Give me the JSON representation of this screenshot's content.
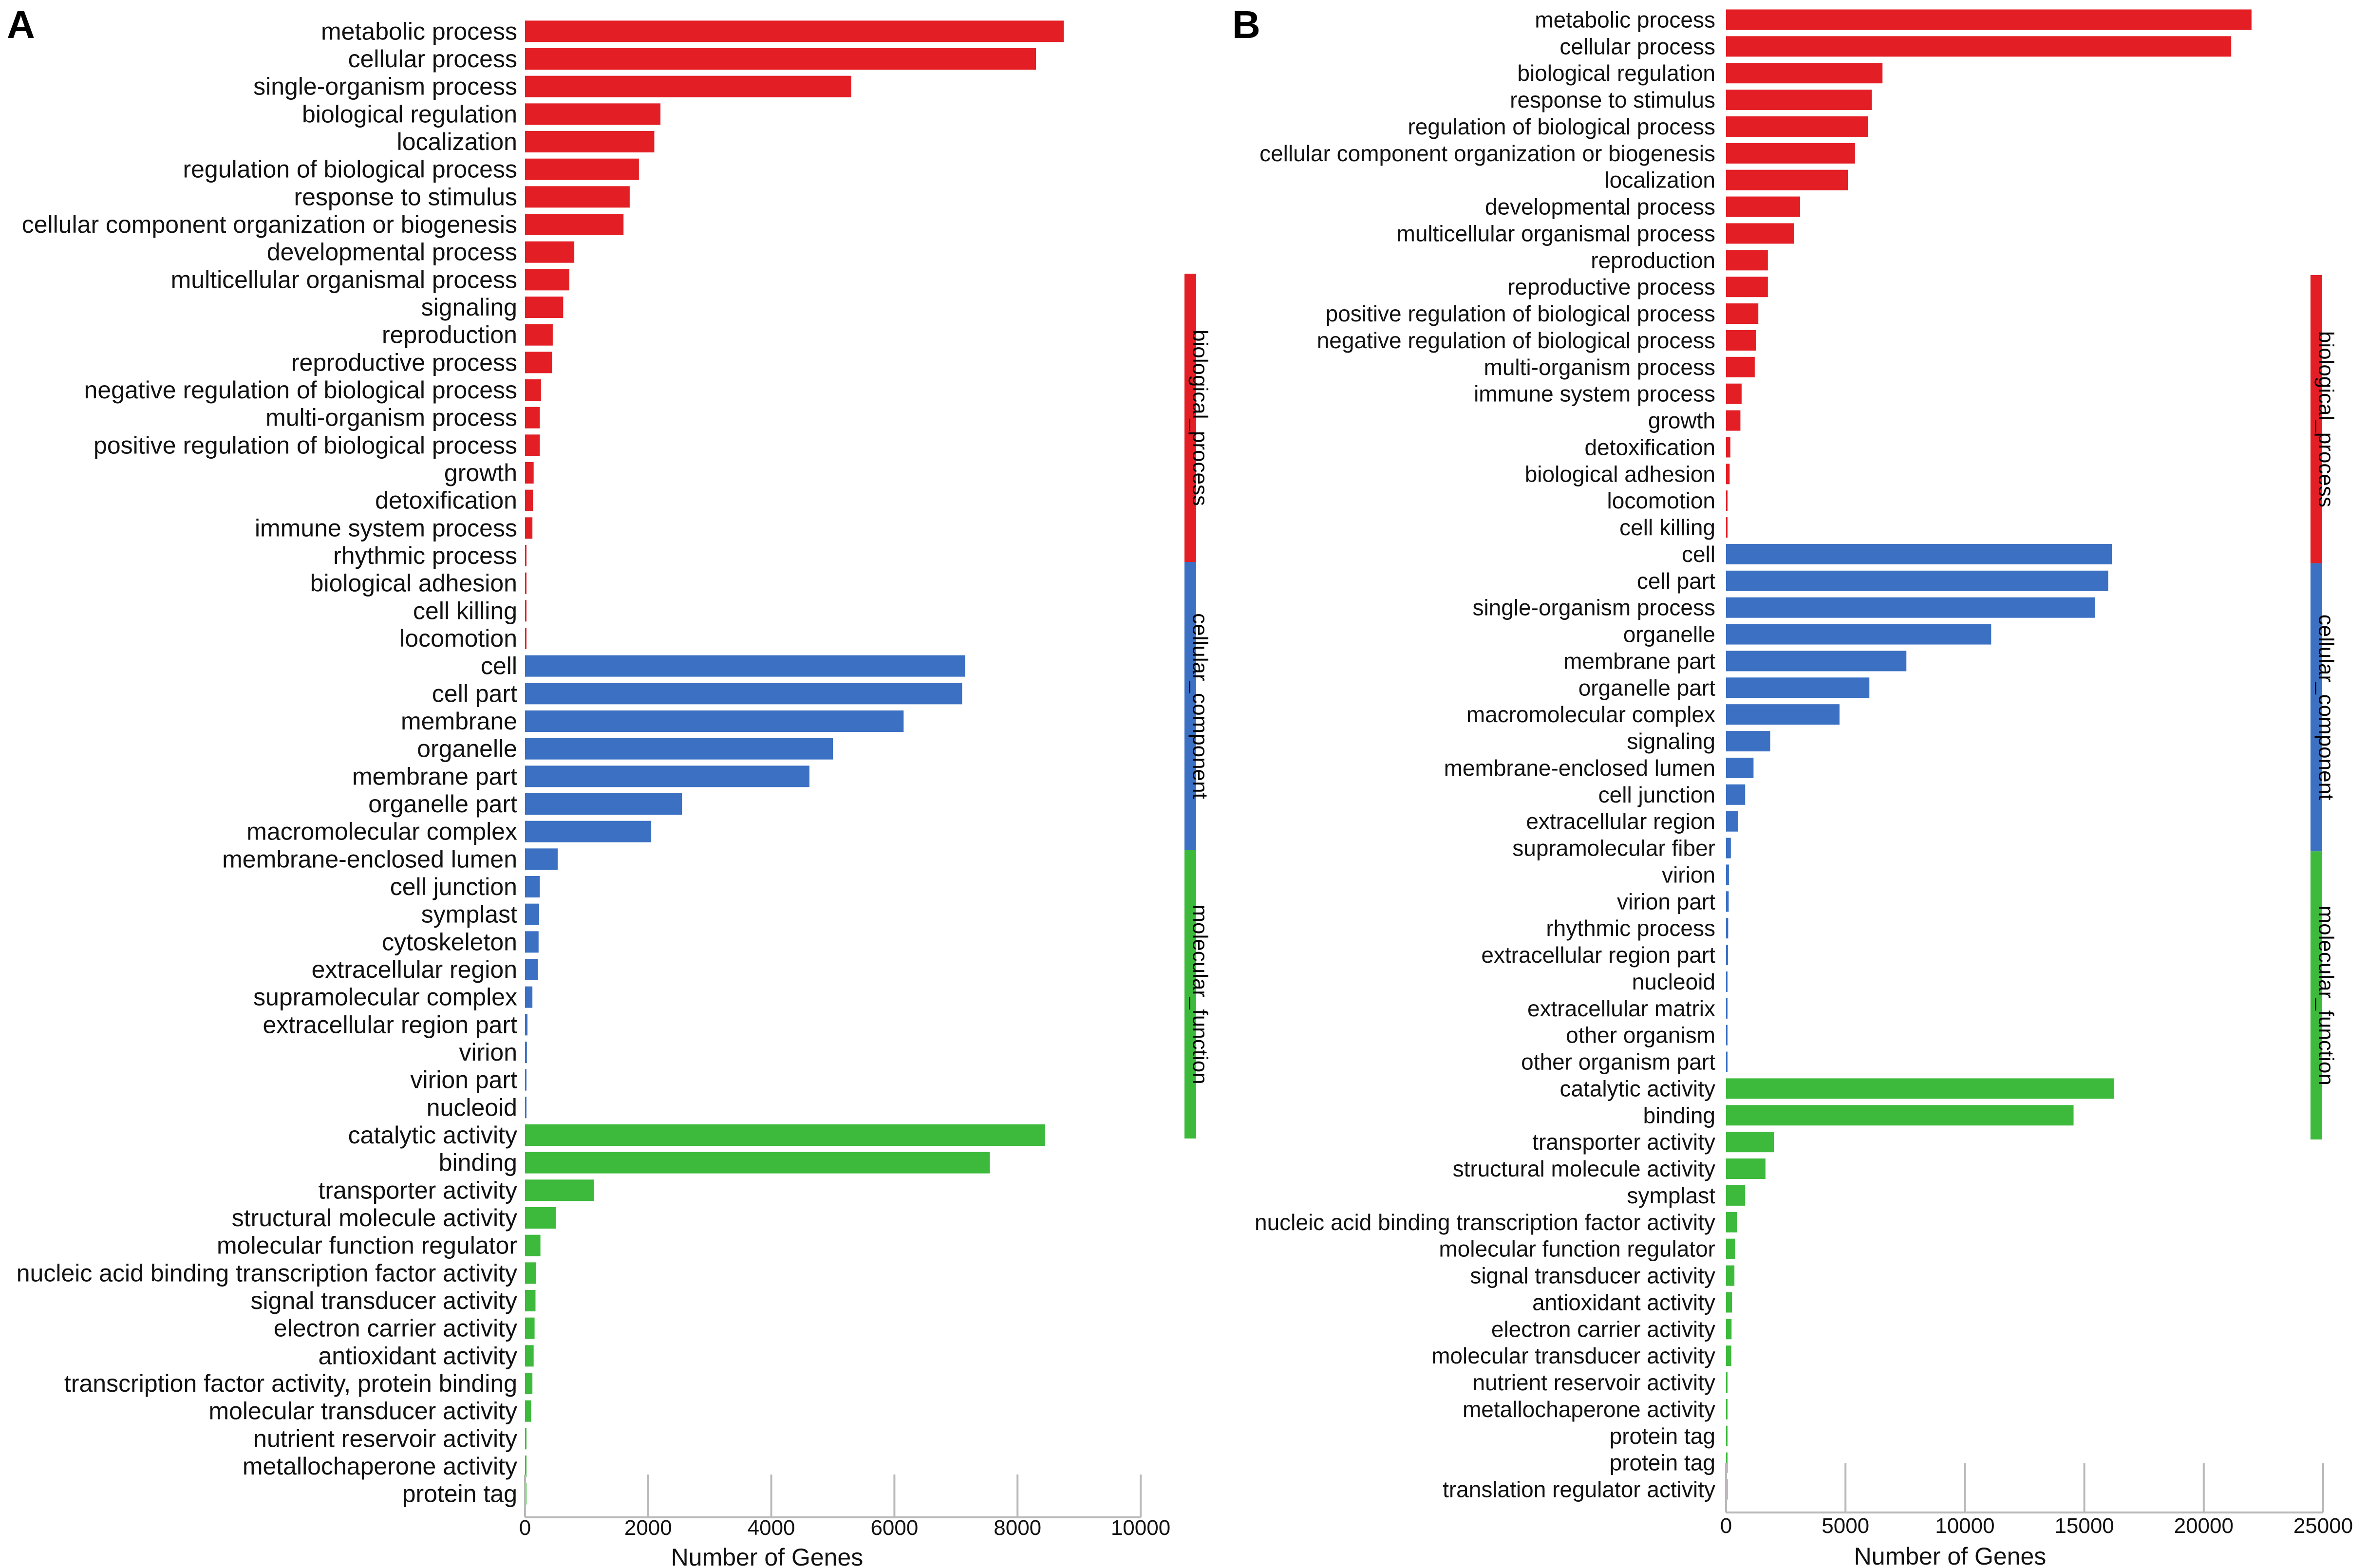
{
  "chart_data": [
    {
      "type": "bar",
      "orientation": "horizontal",
      "panel": "A",
      "xlabel": "Number of Genes",
      "xlim": [
        0,
        10000
      ],
      "xticks": [
        "0",
        "2000",
        "4000",
        "6000",
        "8000",
        "10000"
      ],
      "categories": [
        "metabolic process",
        "cellular process",
        "single-organism process",
        "biological regulation",
        "localization",
        "regulation of biological process",
        "response to stimulus",
        "cellular component organization or biogenesis",
        "developmental process",
        "multicellular organismal process",
        "signaling",
        "reproduction",
        "reproductive process",
        "negative regulation of biological process",
        "multi-organism process",
        "positive regulation of biological process",
        "growth",
        "detoxification",
        "immune system process",
        "rhythmic process",
        "biological adhesion",
        "cell killing",
        "locomotion",
        "cell",
        "cell part",
        "membrane",
        "organelle",
        "membrane part",
        "organelle part",
        "macromolecular complex",
        "membrane-enclosed lumen",
        "cell junction",
        "symplast",
        "cytoskeleton",
        "extracellular region",
        "supramolecular complex",
        "extracellular region part",
        "virion",
        "virion part",
        "nucleoid",
        "catalytic activity",
        "binding",
        "transporter activity",
        "structural molecule activity",
        "molecular function regulator",
        "nucleic acid binding transcription factor activity",
        "signal transducer activity",
        "electron carrier activity",
        "antioxidant activity",
        "transcription factor activity, protein binding",
        "molecular transducer activity",
        "nutrient reservoir activity",
        "metallochaperone activity",
        "protein tag"
      ],
      "values": [
        8750,
        8300,
        5300,
        2200,
        2100,
        1850,
        1700,
        1600,
        800,
        720,
        620,
        450,
        440,
        260,
        240,
        240,
        140,
        130,
        120,
        15,
        15,
        10,
        10,
        7150,
        7100,
        6150,
        5000,
        4620,
        2550,
        2050,
        530,
        240,
        230,
        220,
        210,
        120,
        40,
        30,
        20,
        15,
        8450,
        7550,
        1120,
        500,
        250,
        180,
        170,
        155,
        140,
        120,
        100,
        15,
        10,
        10
      ],
      "group_sizes": [
        23,
        17,
        14
      ],
      "groups": [
        {
          "name": "biological_process",
          "color": "#e31e25"
        },
        {
          "name": "cellular_component",
          "color": "#3b70c3"
        },
        {
          "name": "molecular_function",
          "color": "#3dba3c"
        }
      ]
    },
    {
      "type": "bar",
      "orientation": "horizontal",
      "panel": "B",
      "xlabel": "Number of Genes",
      "xlim": [
        0,
        25000
      ],
      "xticks": [
        "0",
        "5000",
        "10000",
        "15000",
        "20000",
        "25000"
      ],
      "categories": [
        "metabolic process",
        "cellular process",
        "biological regulation",
        "response to stimulus",
        "regulation of biological process",
        "cellular component organization or biogenesis",
        "localization",
        "developmental process",
        "multicellular organismal process",
        "reproduction",
        "reproductive process",
        "positive regulation of biological process",
        "negative regulation of biological process",
        "multi-organism process",
        "immune system process",
        "growth",
        "detoxification",
        "biological adhesion",
        "locomotion",
        "cell killing",
        "cell",
        "cell part",
        "single-organism process",
        "organelle",
        "membrane part",
        "organelle part",
        "macromolecular complex",
        "signaling",
        "membrane-enclosed lumen",
        "cell junction",
        "extracellular region",
        "supramolecular fiber",
        "virion",
        "virion part",
        "rhythmic process",
        "extracellular region part",
        "nucleoid",
        "extracellular matrix",
        "other organism",
        "other organism part",
        "catalytic activity",
        "binding",
        "transporter activity",
        "structural molecule activity",
        "symplast",
        "nucleic acid binding transcription factor activity",
        "molecular function regulator",
        "signal transducer activity",
        "antioxidant activity",
        "electron carrier activity",
        "molecular transducer activity",
        "nutrient reservoir activity",
        "metallochaperone activity",
        "protein tag",
        "protein tag",
        "translation regulator activity"
      ],
      "values": [
        22000,
        21150,
        6550,
        6100,
        5950,
        5400,
        5100,
        3100,
        2850,
        1750,
        1750,
        1350,
        1250,
        1200,
        650,
        600,
        180,
        150,
        50,
        40,
        16150,
        16000,
        15450,
        11100,
        7550,
        6000,
        4750,
        1850,
        1150,
        800,
        500,
        200,
        120,
        110,
        90,
        80,
        40,
        40,
        30,
        25,
        16250,
        14550,
        2000,
        1650,
        800,
        450,
        380,
        350,
        250,
        230,
        220,
        30,
        20,
        15,
        10,
        10
      ],
      "group_sizes": [
        20,
        20,
        16
      ],
      "groups": [
        {
          "name": "biological_process",
          "color": "#e31e25"
        },
        {
          "name": "cellular_component",
          "color": "#3b70c3"
        },
        {
          "name": "molecular_function",
          "color": "#3dba3c"
        }
      ]
    }
  ]
}
